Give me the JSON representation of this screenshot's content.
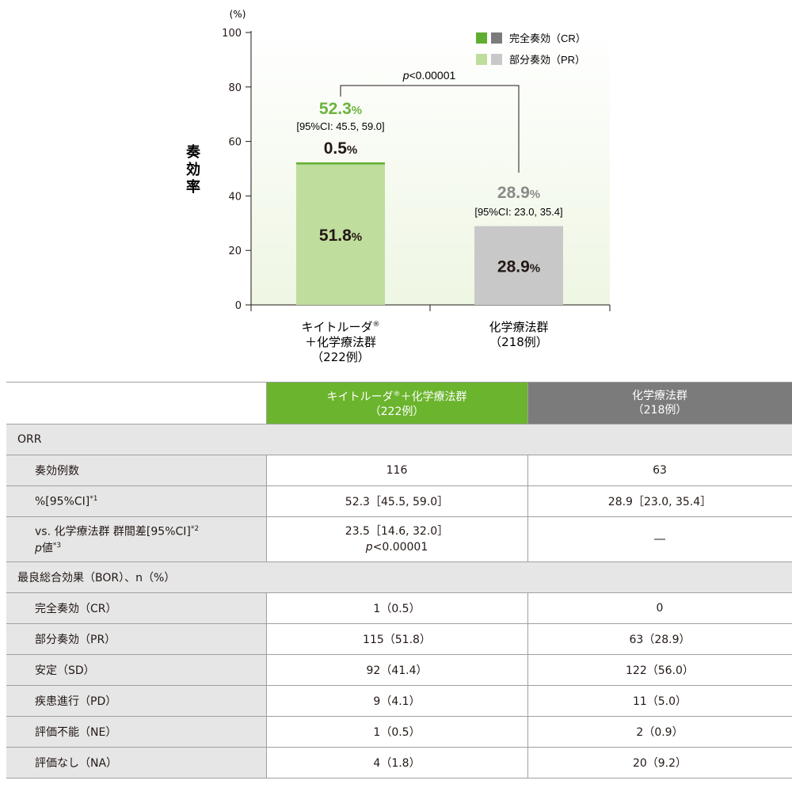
{
  "chart_data": {
    "type": "bar",
    "stacked": true,
    "y_unit_label": "(%)",
    "ylabel": "奏効率",
    "ylim": [
      0,
      100
    ],
    "yticks": [
      0,
      20,
      40,
      60,
      80,
      100
    ],
    "categories": [
      {
        "line1": "キイトルーダ®",
        "line2": "＋化学療法群",
        "line3": "（222例）"
      },
      {
        "line1": "化学療法群",
        "line2": "（218例）",
        "line3": ""
      }
    ],
    "series": [
      {
        "name": "部分奏効（PR）",
        "values": [
          51.8,
          28.9
        ],
        "colors": [
          "#bfdd9c",
          "#c8c8c8"
        ]
      },
      {
        "name": "完全奏効（CR）",
        "values": [
          0.5,
          0
        ],
        "colors": [
          "#5fae32",
          "#7b7b7b"
        ]
      }
    ],
    "bar_labels": {
      "pr": [
        "51.8%",
        "28.9%"
      ],
      "cr": [
        "0.5%",
        ""
      ],
      "total": [
        "52.3%",
        "28.9%"
      ],
      "ci": [
        "[95%CI: 45.5, 59.0]",
        "[95%CI: 23.0, 35.4]"
      ]
    },
    "total_colors": [
      "#6cb33e",
      "#8a8a8a"
    ],
    "pvalue": "p<0.00001",
    "legend": [
      {
        "label": "完全奏効（CR）",
        "colors": [
          "#5fae32",
          "#7b7b7b"
        ]
      },
      {
        "label": "部分奏効（PR）",
        "colors": [
          "#bfdd9c",
          "#c8c8c8"
        ]
      }
    ],
    "legend_position": "top-right",
    "background": "#eef6e3"
  },
  "table": {
    "header_kt": {
      "line1": "キイトルーダ",
      "reg": "®",
      "line1b": "＋化学療法群",
      "line2": "（222例）"
    },
    "header_chemo": {
      "line1": "化学療法群",
      "line2": "（218例）"
    },
    "orr_section": "ORR",
    "rows_orr": [
      {
        "label": "奏効例数",
        "kt": "116",
        "chemo": "63"
      },
      {
        "label": "%[95%CI]",
        "sup": "*1",
        "kt": "52.3［45.5, 59.0］",
        "chemo": "28.9［23.0, 35.4］"
      }
    ],
    "diff_row": {
      "label1": "vs. 化学療法群 群間差[95%CI]",
      "sup1": "*2",
      "label2_p": "p",
      "label2": "値",
      "sup2": "*3",
      "kt1": "23.5［14.6, 32.0］",
      "kt2_p": "p",
      "kt2": "<0.00001",
      "chemo": "―"
    },
    "bor_section": "最良総合効果（BOR）、n（%）",
    "rows_bor": [
      {
        "label": "完全奏効（CR）",
        "kt": "1（0.5）",
        "chemo": "0"
      },
      {
        "label": "部分奏効（PR）",
        "kt": "115（51.8）",
        "chemo": "63（28.9）"
      },
      {
        "label": "安定（SD）",
        "kt": "92（41.4）",
        "chemo": "122（56.0）"
      },
      {
        "label": "疾患進行（PD）",
        "kt": "9（4.1）",
        "chemo": "11（5.0）"
      },
      {
        "label": "評価不能（NE）",
        "kt": "1（0.5）",
        "chemo": "2（0.9）"
      },
      {
        "label": "評価なし（NA）",
        "kt": "4（1.8）",
        "chemo": "20（9.2）"
      }
    ],
    "colors": {
      "kt_header": "#6bb42d",
      "chemo_header": "#7b7b7b",
      "label_bg": "#e6e6e6"
    }
  }
}
